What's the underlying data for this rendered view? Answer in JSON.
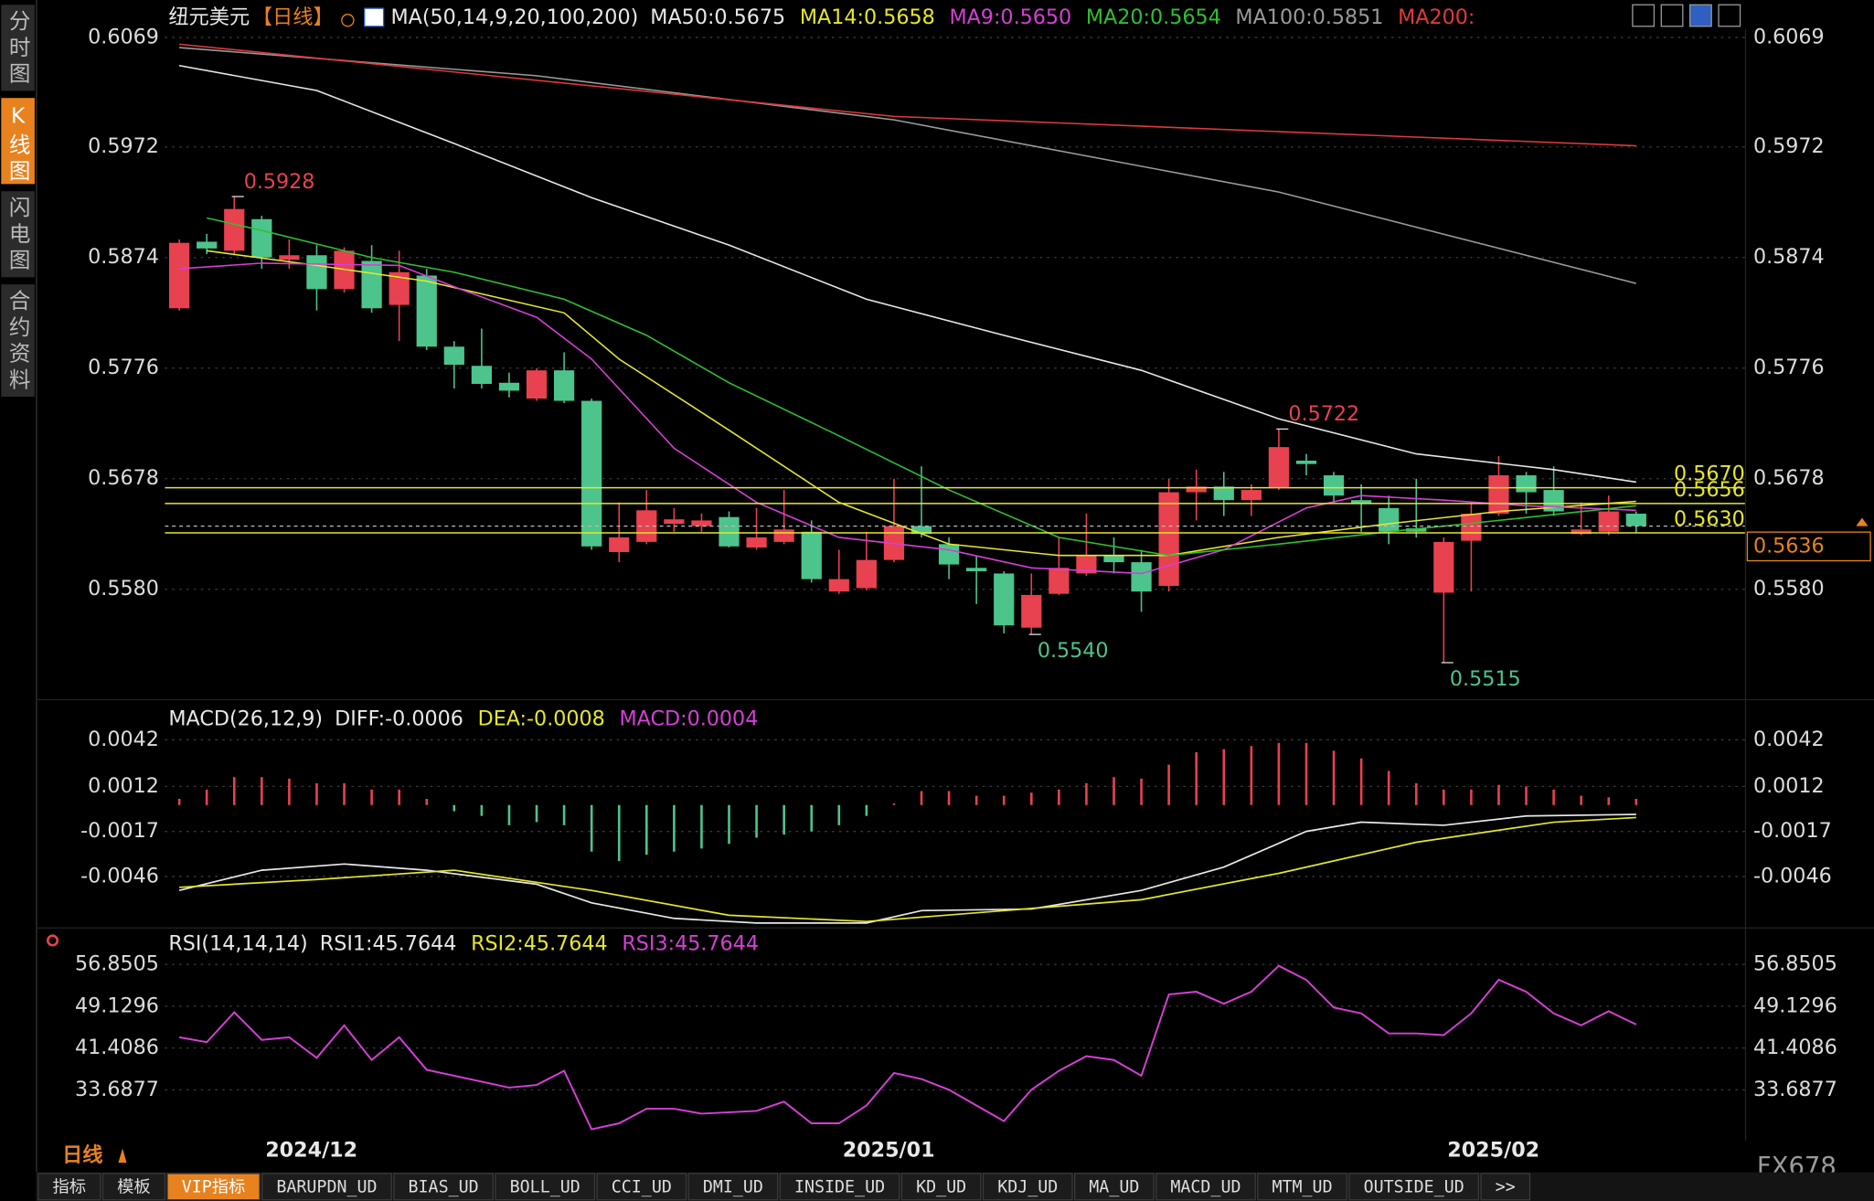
{
  "sidebar": {
    "tabs": [
      "分时图",
      "K线图",
      "闪电图",
      "合约资料"
    ],
    "active": 1
  },
  "chart_data": [
    {
      "type": "candlestick",
      "title": "纽元美元",
      "subtitle": "【日线】",
      "legend_title": "MA(50,14,9,20,100,200)",
      "up_color": "#e8414f",
      "down_color": "#4cc48c",
      "grid": true,
      "categories": [
        null,
        null,
        null,
        "2024/12",
        null,
        null,
        null,
        null,
        null,
        null,
        null,
        null,
        null,
        null,
        null,
        null,
        null,
        null,
        null,
        null,
        null,
        null,
        null,
        null,
        "2025/01",
        null,
        null,
        null,
        null,
        null,
        null,
        null,
        null,
        null,
        null,
        null,
        null,
        null,
        null,
        null,
        null,
        null,
        null,
        null,
        null,
        null,
        "2025/02",
        null,
        null,
        null,
        null,
        null,
        null,
        null
      ],
      "open": [
        0.5829,
        0.5888,
        0.588,
        0.5908,
        0.5872,
        0.5876,
        0.5846,
        0.5871,
        0.5832,
        0.5858,
        0.5795,
        0.5778,
        0.5763,
        0.5749,
        0.5774,
        0.5747,
        0.5613,
        0.5622,
        0.5638,
        0.5636,
        0.5644,
        0.5617,
        0.5622,
        0.5631,
        0.5578,
        0.5581,
        0.5606,
        0.5636,
        0.562,
        0.5599,
        0.5594,
        0.5546,
        0.5576,
        0.5594,
        0.561,
        0.5604,
        0.5583,
        0.5666,
        0.5671,
        0.5659,
        0.567,
        0.5694,
        0.5681,
        0.5659,
        0.5652,
        0.5634,
        0.5577,
        0.5623,
        0.5647,
        0.5681,
        0.5668,
        0.5629,
        0.5631,
        0.5647
      ],
      "high": [
        0.589,
        0.5895,
        0.5928,
        0.5911,
        0.589,
        0.5885,
        0.5883,
        0.5885,
        0.588,
        0.5864,
        0.58,
        0.5811,
        0.5772,
        0.5776,
        0.579,
        0.5749,
        0.5657,
        0.5668,
        0.5652,
        0.5647,
        0.5649,
        0.5652,
        0.5668,
        0.5641,
        0.5615,
        0.5631,
        0.5678,
        0.5689,
        0.5626,
        0.561,
        0.5596,
        0.5594,
        0.5626,
        0.5647,
        0.5626,
        0.5615,
        0.5678,
        0.5686,
        0.5684,
        0.5673,
        0.5722,
        0.57,
        0.5684,
        0.5673,
        0.5663,
        0.5678,
        0.5626,
        0.5657,
        0.5698,
        0.5684,
        0.5689,
        0.5657,
        0.5663,
        0.5649
      ],
      "low": [
        0.5827,
        0.5877,
        0.5877,
        0.5864,
        0.5864,
        0.5827,
        0.5843,
        0.5825,
        0.58,
        0.5792,
        0.5758,
        0.5758,
        0.575,
        0.5747,
        0.5745,
        0.5615,
        0.5604,
        0.562,
        0.5631,
        0.5631,
        0.5617,
        0.5615,
        0.562,
        0.5586,
        0.5576,
        0.5579,
        0.5604,
        0.5626,
        0.5589,
        0.5567,
        0.5541,
        0.554,
        0.5575,
        0.5592,
        0.5594,
        0.556,
        0.5578,
        0.5641,
        0.5645,
        0.5645,
        0.5668,
        0.5681,
        0.5657,
        0.5631,
        0.562,
        0.5626,
        0.5515,
        0.5578,
        0.5645,
        0.5647,
        0.5645,
        0.5628,
        0.5628,
        0.563
      ],
      "close": [
        0.5887,
        0.5882,
        0.5917,
        0.5874,
        0.5876,
        0.5846,
        0.588,
        0.5829,
        0.5861,
        0.5795,
        0.5779,
        0.5762,
        0.5756,
        0.5774,
        0.5747,
        0.5618,
        0.5626,
        0.565,
        0.5642,
        0.5641,
        0.5618,
        0.5626,
        0.5633,
        0.5589,
        0.5589,
        0.5606,
        0.5636,
        0.5629,
        0.5602,
        0.5596,
        0.5548,
        0.5575,
        0.5599,
        0.561,
        0.5604,
        0.5578,
        0.5666,
        0.5671,
        0.5659,
        0.5668,
        0.5706,
        0.5691,
        0.5663,
        0.5656,
        0.5631,
        0.5631,
        0.5622,
        0.5647,
        0.5681,
        0.5666,
        0.5649,
        0.5633,
        0.5649,
        0.5636
      ],
      "series": [
        {
          "name": "MA50:0.5675",
          "color": "#e8e8e8",
          "x": [
            0,
            5,
            10,
            15,
            20,
            25,
            30,
            35,
            40,
            45,
            50,
            53
          ],
          "values": [
            0.6044,
            0.6022,
            0.5975,
            0.5927,
            0.5885,
            0.5837,
            0.5805,
            0.5774,
            0.5731,
            0.57,
            0.5686,
            0.5675
          ]
        },
        {
          "name": "MA14:0.5658",
          "color": "#e6e62e",
          "x": [
            1,
            5,
            9,
            14,
            16,
            20,
            24,
            28,
            32,
            36,
            40,
            44,
            48,
            53
          ],
          "values": [
            0.588,
            0.5867,
            0.5853,
            0.5825,
            0.5784,
            0.5721,
            0.5657,
            0.562,
            0.561,
            0.561,
            0.5626,
            0.5638,
            0.5649,
            0.5658
          ]
        },
        {
          "name": "MA9:0.5650",
          "color": "#d63fd6",
          "x": [
            0,
            3,
            8,
            10,
            13,
            15,
            18,
            21,
            24,
            28,
            31,
            35,
            38,
            41,
            43,
            46,
            49,
            53
          ],
          "values": [
            0.5864,
            0.5869,
            0.5867,
            0.5848,
            0.5821,
            0.5784,
            0.5705,
            0.5657,
            0.5626,
            0.5615,
            0.5599,
            0.5594,
            0.5615,
            0.5652,
            0.5663,
            0.5659,
            0.5654,
            0.565
          ]
        },
        {
          "name": "MA20:0.5654",
          "color": "#2fc02f",
          "x": [
            1,
            3,
            7,
            10,
            14,
            17,
            20,
            24,
            28,
            32,
            36,
            40,
            44,
            48,
            53
          ],
          "values": [
            0.5909,
            0.5898,
            0.5874,
            0.5861,
            0.5837,
            0.5805,
            0.5763,
            0.5716,
            0.5668,
            0.5626,
            0.561,
            0.562,
            0.5631,
            0.5641,
            0.5654
          ]
        },
        {
          "name": "MA100:0.5851",
          "color": "#9a9a9a",
          "x": [
            0,
            13,
            26,
            40,
            53
          ],
          "values": [
            0.606,
            0.6035,
            0.5996,
            0.5932,
            0.5851
          ]
        },
        {
          "name": "MA200:",
          "color": "#e03a3a",
          "x": [
            0,
            26,
            53
          ],
          "values": [
            0.6063,
            0.5999,
            0.5973
          ]
        }
      ],
      "ylim": [
        0.5488,
        0.6081
      ],
      "yticks": [
        0.6069,
        0.5972,
        0.5874,
        0.5776,
        0.5678,
        {
          "value": 0.558,
          "label": "0.5580"
        }
      ],
      "hlines": {
        "color": "#e6e62e",
        "lines": [
          {
            "value": 0.567,
            "label": "0.5670"
          },
          {
            "value": 0.5656,
            "label": "0.5656"
          },
          {
            "value": 0.563,
            "label": "0.5630"
          }
        ]
      },
      "last_price": {
        "value": 0.5636,
        "label": "0.5636",
        "color": "#e8821e"
      },
      "annotations": [
        {
          "x": 2,
          "value": 0.5928,
          "label": "0.5928",
          "color": "#e8414f"
        },
        {
          "x": 40,
          "value": 0.5722,
          "label": "0.5722",
          "color": "#e8414f"
        },
        {
          "x": 31,
          "value": 0.554,
          "label": "0.5540",
          "color": "#4cc48c"
        },
        {
          "x": 46,
          "value": 0.5515,
          "label": "0.5515",
          "color": "#4cc48c"
        }
      ]
    },
    {
      "type": "macd",
      "legend_title": "MACD(26,12,9)",
      "up_color": "#e8414f",
      "down_color": "#4cc48c",
      "grid": true,
      "series": [
        {
          "name": "DIFF:-0.0006",
          "color": "#e8e8e8",
          "x": [
            0,
            3,
            6,
            9,
            13,
            15,
            18,
            21,
            25,
            27,
            31,
            35,
            38,
            41,
            43,
            46,
            49,
            53
          ],
          "values": [
            -0.0055,
            -0.0042,
            -0.0038,
            -0.0042,
            -0.0051,
            -0.0063,
            -0.0073,
            -0.0076,
            -0.0076,
            -0.0068,
            -0.0067,
            -0.0055,
            -0.004,
            -0.0017,
            -0.0011,
            -0.0013,
            -0.0007,
            -0.0006
          ]
        },
        {
          "name": "DEA:-0.0008",
          "color": "#e6e62e",
          "x": [
            0,
            5,
            10,
            15,
            20,
            25,
            30,
            35,
            40,
            45,
            50,
            53
          ],
          "values": [
            -0.0053,
            -0.0048,
            -0.0042,
            -0.0055,
            -0.0071,
            -0.0075,
            -0.0068,
            -0.0061,
            -0.0044,
            -0.0024,
            -0.0011,
            -0.0008
          ]
        },
        {
          "name": "MACD:0.0004",
          "color": "#d63fd6",
          "type": "bar",
          "values": [
            0.0004,
            0.001,
            0.0018,
            0.0018,
            0.0017,
            0.0014,
            0.0014,
            0.001,
            0.001,
            0.0004,
            -0.0004,
            -0.0007,
            -0.0013,
            -0.0011,
            -0.0013,
            -0.003,
            -0.0036,
            -0.0032,
            -0.003,
            -0.0028,
            -0.0025,
            -0.0021,
            -0.0019,
            -0.0017,
            -0.0013,
            -0.0007,
            0.0001,
            0.0009,
            0.0009,
            0.0006,
            0.0006,
            0.0008,
            0.001,
            0.0014,
            0.0018,
            0.0017,
            0.0026,
            0.0034,
            0.0036,
            0.0038,
            0.004,
            0.004,
            0.0035,
            0.003,
            0.0022,
            0.0014,
            0.001,
            0.001,
            0.0013,
            0.0012,
            0.001,
            0.0006,
            0.0005,
            0.0004
          ]
        }
      ],
      "ylim": [
        -0.0078,
        0.0049
      ],
      "yticks": [
        0.0042,
        0.0012,
        -0.0017,
        -0.0046
      ]
    },
    {
      "type": "line",
      "legend_title": "RSI(14,14,14)",
      "grid": true,
      "series": [
        {
          "name": "RSI1:45.7644",
          "color": "#e8e8e8"
        },
        {
          "name": "RSI2:45.7644",
          "color": "#e6e62e"
        },
        {
          "name": "RSI3:45.7644",
          "color": "#d63fd6",
          "x": [
            0,
            1,
            2,
            3,
            4,
            5,
            6,
            7,
            8,
            9,
            10,
            12,
            13,
            14,
            15,
            16,
            17,
            18,
            19,
            21,
            22,
            23,
            24,
            25,
            26,
            27,
            28,
            29,
            30,
            31,
            32,
            33,
            34,
            35,
            36,
            37,
            38,
            39,
            40,
            41,
            42,
            43,
            44,
            45,
            46,
            47,
            48,
            49,
            50,
            51,
            52,
            53
          ],
          "values": [
            43.39,
            42.5,
            48,
            42.9,
            43.4,
            39.6,
            45.6,
            39.2,
            43.4,
            37.4,
            36.3,
            34.1,
            34.6,
            37.2,
            26.4,
            27.5,
            30.2,
            30.2,
            29.3,
            29.8,
            31.5,
            27.5,
            27.5,
            30.8,
            36.8,
            35.7,
            33.7,
            30.8,
            27.9,
            33.7,
            37.2,
            39.9,
            39.2,
            36.3,
            51.3,
            51.8,
            49.6,
            51.8,
            56.6,
            53.98,
            48.9,
            47.8,
            44.1,
            44.1,
            43.8,
            47.8,
            54,
            51.8,
            47.8,
            45.6,
            48.2,
            45.7644
          ]
        }
      ],
      "ylim": [
        24.2,
        58.4
      ],
      "yticks": [
        56.8505,
        49.1296,
        41.4086,
        33.6877
      ]
    }
  ],
  "footer": {
    "period": "日线",
    "watermark": "FX678",
    "active": 2,
    "tabs": [
      "指标",
      "模板",
      "VIP指标",
      "BARUPDN_UD",
      "BIAS_UD",
      "BOLL_UD",
      "CCI_UD",
      "DMI_UD",
      "INSIDE_UD",
      "KD_UD",
      "KDJ_UD",
      "MA_UD",
      "MACD_UD",
      "MTM_UD",
      "OUTSIDE_UD",
      ">>"
    ]
  }
}
